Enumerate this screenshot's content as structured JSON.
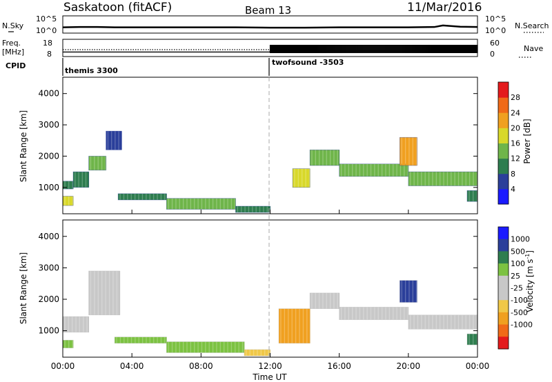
{
  "header": {
    "title": "Saskatoon (fitACF)",
    "beam": "Beam 13",
    "date": "11/Mar/2016"
  },
  "noise_panel": {
    "left_label": "N.Sky",
    "right_label": "N.Search",
    "left_ticks": [
      "10^5",
      "10^0"
    ],
    "right_ticks": [
      "10^5",
      "10^0"
    ]
  },
  "freq_panel": {
    "left_label_line1": "Freq.",
    "left_label_line2": "[MHz]",
    "right_label": "Nave",
    "left_ticks": [
      "18",
      "8"
    ],
    "right_ticks": [
      "60",
      "0"
    ]
  },
  "cpid": {
    "label": "CPID",
    "segments": [
      {
        "name": "themis 3300",
        "start_hour": 0
      },
      {
        "name": "twofsound -3503",
        "start_hour": 12
      }
    ]
  },
  "x_axis": {
    "label": "Time UT",
    "ticks": [
      "00:00",
      "04:00",
      "08:00",
      "12:00",
      "16:00",
      "20:00",
      "00:00"
    ]
  },
  "colors": {
    "power": [
      "#1a1aff",
      "#2b3f9a",
      "#2e7d4f",
      "#6fb54a",
      "#d8d82a",
      "#f0a020",
      "#f06a18",
      "#e41a1c"
    ],
    "velocity": [
      "#e41a1c",
      "#f06a18",
      "#f0a020",
      "#f0d040",
      "#c8c8c8",
      "#c8c8c8",
      "#7cc242",
      "#2e7d4f",
      "#2b3f9a",
      "#1a1aff"
    ]
  },
  "chart_data": [
    {
      "type": "line",
      "title": "",
      "series": [
        {
          "name": "N.Sky",
          "x": [
            0,
            1,
            2,
            3,
            4,
            6,
            8,
            10,
            12,
            14,
            16,
            18,
            20,
            21.5,
            22,
            23,
            24
          ],
          "values": [
            1.6,
            1.7,
            1.7,
            1.6,
            1.6,
            1.6,
            1.6,
            1.6,
            1.5,
            1.5,
            1.6,
            1.6,
            1.6,
            1.7,
            2.2,
            1.8,
            1.7
          ]
        }
      ],
      "ylim": [
        0,
        5
      ],
      "xlim": [
        0,
        24
      ]
    },
    {
      "type": "line",
      "series": [
        {
          "name": "Freq.",
          "x": [
            0,
            12,
            12,
            24
          ],
          "values": [
            10.4,
            10.4,
            11.0,
            11.0
          ]
        }
      ],
      "ylim": [
        8,
        18
      ],
      "xlim": [
        0,
        24
      ]
    },
    {
      "type": "heatmap",
      "xlabel": "Time UT",
      "ylabel": "Slant Range [km]",
      "colorbar_label": "Power [dB]",
      "colorbar_ticks": [
        4,
        8,
        12,
        16,
        20,
        24,
        28
      ],
      "ylim": [
        180,
        4500
      ],
      "yticks": [
        1000,
        2000,
        3000,
        4000
      ],
      "xlim": [
        0,
        24
      ],
      "echo_bands": [
        {
          "t0": 0.0,
          "t1": 0.6,
          "r0": 420,
          "r1": 720,
          "value": 18
        },
        {
          "t0": 0.0,
          "t1": 0.6,
          "r0": 950,
          "r1": 1200,
          "value": 10
        },
        {
          "t0": 0.6,
          "t1": 1.5,
          "r0": 1000,
          "r1": 1500,
          "value": 12
        },
        {
          "t0": 1.5,
          "t1": 2.5,
          "r0": 1550,
          "r1": 2000,
          "value": 16
        },
        {
          "t0": 2.5,
          "t1": 3.4,
          "r0": 2200,
          "r1": 2800,
          "value": 9
        },
        {
          "t0": 3.2,
          "t1": 6.0,
          "r0": 600,
          "r1": 800,
          "value": 10
        },
        {
          "t0": 6.0,
          "t1": 10.0,
          "r0": 300,
          "r1": 650,
          "value": 14
        },
        {
          "t0": 10.0,
          "t1": 12.0,
          "r0": 200,
          "r1": 400,
          "value": 10
        },
        {
          "t0": 13.3,
          "t1": 14.3,
          "r0": 1000,
          "r1": 1600,
          "value": 20
        },
        {
          "t0": 14.3,
          "t1": 16.0,
          "r0": 1700,
          "r1": 2200,
          "value": 16
        },
        {
          "t0": 16.0,
          "t1": 20.0,
          "r0": 1350,
          "r1": 1750,
          "value": 16
        },
        {
          "t0": 19.5,
          "t1": 20.5,
          "r0": 1700,
          "r1": 2600,
          "value": 24
        },
        {
          "t0": 20.0,
          "t1": 24.0,
          "r0": 1050,
          "r1": 1500,
          "value": 16
        },
        {
          "t0": 23.4,
          "t1": 24.0,
          "r0": 550,
          "r1": 900,
          "value": 12
        }
      ]
    },
    {
      "type": "heatmap",
      "xlabel": "Time UT",
      "ylabel": "Slant Range [km]",
      "colorbar_label": "Velocity [m s^-1]",
      "colorbar_ticks": [
        1000,
        500,
        100,
        25,
        -25,
        -100,
        -500,
        -1000
      ],
      "ylim": [
        180,
        4500
      ],
      "yticks": [
        1000,
        2000,
        3000,
        4000
      ],
      "xlim": [
        0,
        24
      ],
      "echo_bands": [
        {
          "t0": 0.0,
          "t1": 0.6,
          "r0": 450,
          "r1": 700,
          "value": 100
        },
        {
          "t0": 0.0,
          "t1": 1.5,
          "r0": 950,
          "r1": 1450,
          "value": 0
        },
        {
          "t0": 1.5,
          "t1": 3.3,
          "r0": 1500,
          "r1": 2900,
          "value": 0
        },
        {
          "t0": 3.0,
          "t1": 6.0,
          "r0": 600,
          "r1": 800,
          "value": 100
        },
        {
          "t0": 6.0,
          "t1": 10.5,
          "r0": 300,
          "r1": 650,
          "value": 80
        },
        {
          "t0": 10.5,
          "t1": 12.0,
          "r0": 200,
          "r1": 400,
          "value": -60
        },
        {
          "t0": 12.5,
          "t1": 14.3,
          "r0": 600,
          "r1": 1700,
          "value": -300
        },
        {
          "t0": 14.3,
          "t1": 16.0,
          "r0": 1700,
          "r1": 2200,
          "value": 0
        },
        {
          "t0": 16.0,
          "t1": 20.0,
          "r0": 1350,
          "r1": 1750,
          "value": 0
        },
        {
          "t0": 19.5,
          "t1": 20.5,
          "r0": 1900,
          "r1": 2600,
          "value": 600
        },
        {
          "t0": 20.0,
          "t1": 24.0,
          "r0": 1050,
          "r1": 1500,
          "value": 0
        },
        {
          "t0": 23.4,
          "t1": 24.0,
          "r0": 550,
          "r1": 900,
          "value": 150
        }
      ]
    }
  ]
}
